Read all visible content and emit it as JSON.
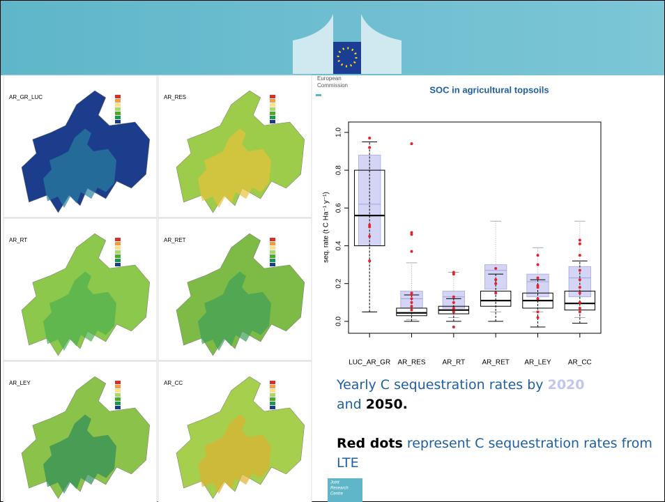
{
  "slide": {
    "agency": [
      "European",
      "Commission"
    ],
    "footer": [
      "Joint",
      "Research",
      "Centre"
    ],
    "map_panels": [
      "AR_GR_LUC",
      "AR_RES",
      "AR_RT",
      "AR_RET",
      "AR_LEY",
      "AR_CC"
    ],
    "text": {
      "line1": "Yearly C sequestration rates by ",
      "year1": "2020",
      "and": "and ",
      "year2": "2050.",
      "bold": "Red dots",
      "rest": " represent C sequestration rates from LTE"
    }
  },
  "chart_data": {
    "type": "box",
    "title": "SOC in agricultural topsoils",
    "y_label": "seq. rate (t C Ha⁻¹ y⁻¹)",
    "categories": [
      "LUC_AR_GR",
      "AR_RES",
      "AR_RT",
      "AR_RET",
      "AR_LEY",
      "AR_CC"
    ],
    "ylim": [
      -0.063,
      1.055
    ],
    "yticks": [
      {
        "value": 0,
        "label": "0.0"
      },
      0.2,
      0.4,
      0.6,
      0.8,
      {
        "value": 1,
        "label": "1.0"
      }
    ],
    "series": [
      {
        "color": "#c9cbf2",
        "min": [
          0.05,
          0.01,
          0.02,
          0.05,
          0.05,
          0.02
        ],
        "q1": [
          0.4,
          0.07,
          0.07,
          0.17,
          0.13,
          0.13
        ],
        "median": [
          0.62,
          0.12,
          0.13,
          0.27,
          0.21,
          0.23
        ],
        "q3": [
          0.88,
          0.16,
          0.16,
          0.3,
          0.25,
          0.29
        ],
        "max": [
          0.95,
          0.31,
          0.26,
          0.53,
          0.39,
          0.53
        ]
      },
      {
        "color": "#000000",
        "min": [
          0.05,
          0.0,
          0.0,
          0.0,
          -0.03,
          -0.01
        ],
        "q1": [
          0.4,
          0.03,
          0.04,
          0.08,
          0.07,
          0.06
        ],
        "median": [
          0.56,
          0.045,
          0.06,
          0.11,
          0.11,
          0.095
        ],
        "q3": [
          0.8,
          0.07,
          0.08,
          0.16,
          0.15,
          0.16
        ],
        "max": [
          0.95,
          0.14,
          0.12,
          0.25,
          0.22,
          0.32
        ]
      }
    ],
    "points": {
      "color": "#e8202a",
      "values": [
        [
          0.97,
          0.92,
          0.51,
          0.5,
          0.45,
          0.32
        ],
        [
          0.94,
          0.47,
          0.46,
          0.37,
          0.15,
          0.14,
          0.12,
          0.1,
          0.08,
          0.06
        ],
        [
          0.26,
          0.25,
          0.13,
          0.1,
          0.07,
          0.05,
          -0.03
        ],
        [
          0.28,
          0.22,
          0.2,
          0.15
        ],
        [
          0.35,
          0.3,
          0.23,
          0.19,
          0.18,
          0.12,
          0.05,
          0.02
        ],
        [
          0.43,
          0.41,
          0.35,
          0.27,
          0.22,
          0.18,
          0.15,
          0.1,
          0.07,
          0.05
        ]
      ]
    }
  }
}
